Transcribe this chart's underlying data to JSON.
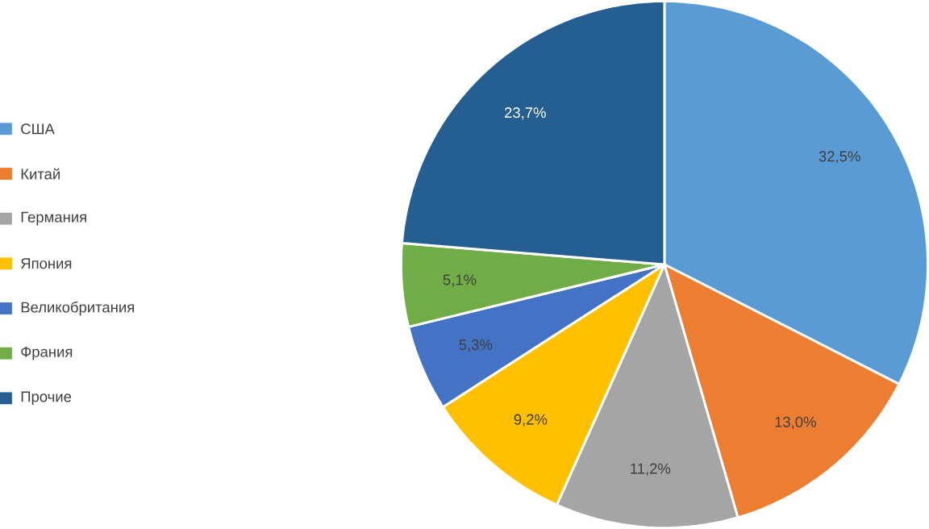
{
  "chart_data": {
    "type": "pie",
    "categories": [
      "США",
      "Китай",
      "Германия",
      "Япония",
      "Великобритания",
      "Франия",
      "Прочие"
    ],
    "values": [
      32.5,
      13.0,
      11.2,
      9.2,
      5.3,
      5.1,
      23.7
    ],
    "value_labels": [
      "32,5%",
      "13,0%",
      "11,2%",
      "9,2%",
      "5,3%",
      "5,1%",
      "23,7%"
    ],
    "colors": [
      "#5b9bd5",
      "#ed7d31",
      "#a5a5a5",
      "#ffc000",
      "#4472c4",
      "#70ad47",
      "#255e91"
    ],
    "legend": "left"
  }
}
